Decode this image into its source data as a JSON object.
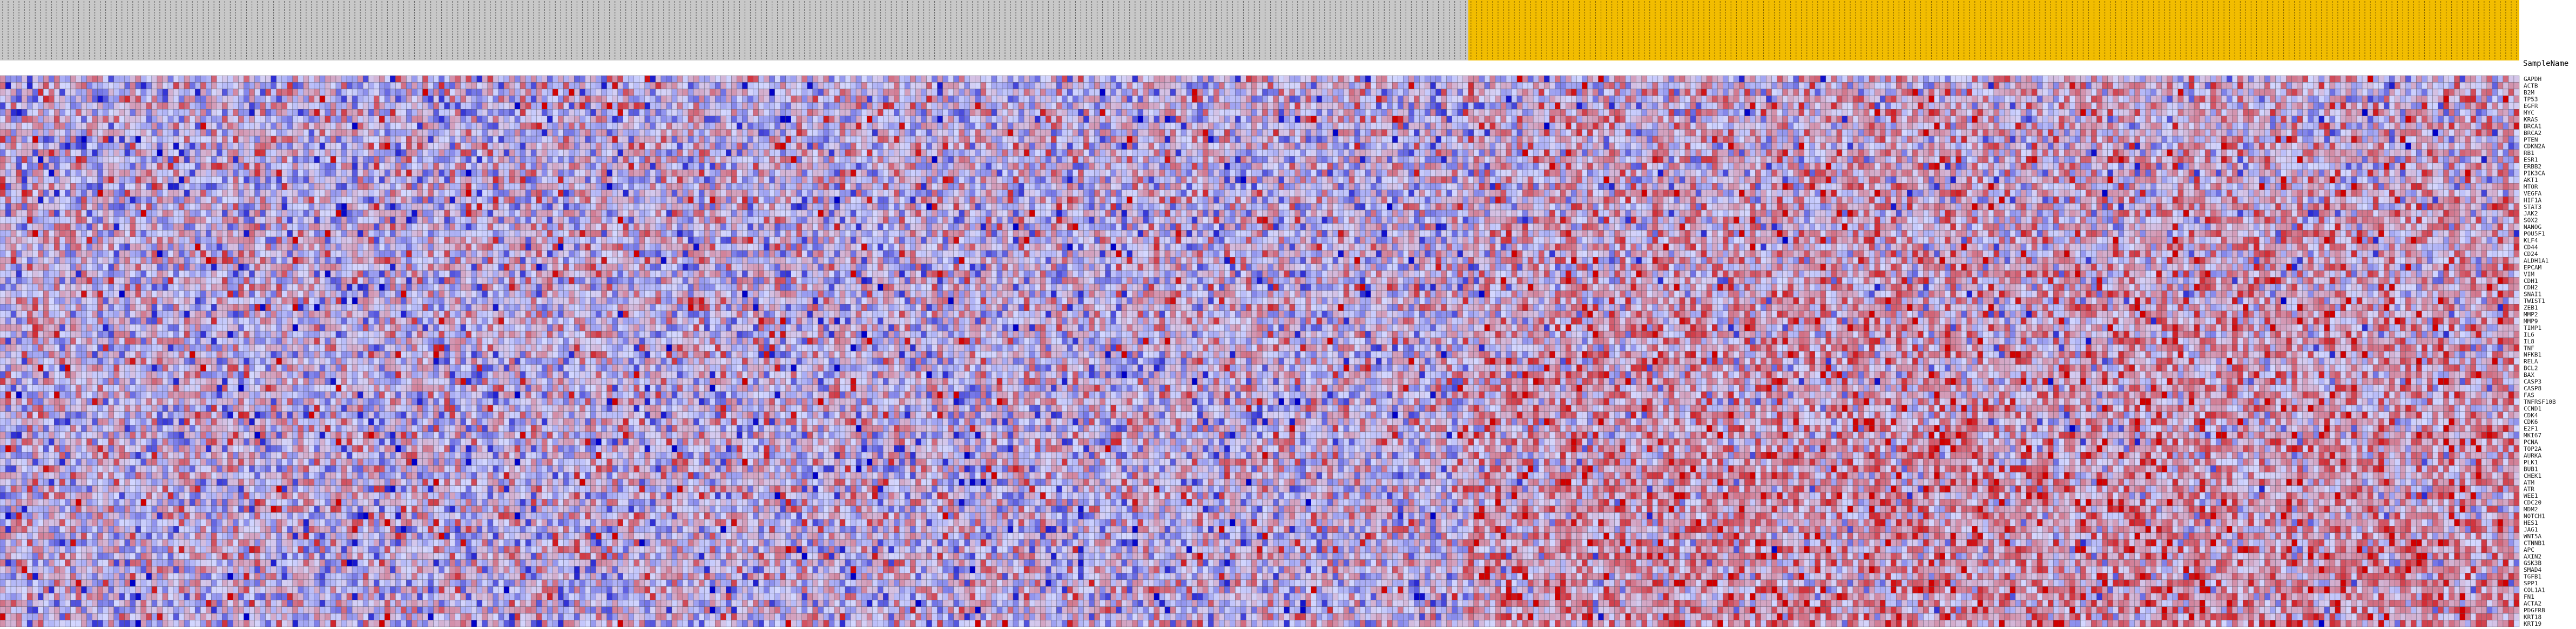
{
  "chart_data": {
    "type": "heatmap",
    "title": "",
    "header_label": "SampleName",
    "column_groups": [
      {
        "name": "",
        "count": 271,
        "color": "#c8c8c8"
      },
      {
        "name": "",
        "count": 194,
        "color": "#f2bd00"
      }
    ],
    "rows": [
      "GAPDH",
      "ACTB",
      "B2M",
      "TP53",
      "EGFR",
      "MYC",
      "KRAS",
      "BRCA1",
      "BRCA2",
      "PTEN",
      "CDKN2A",
      "RB1",
      "ESR1",
      "ERBB2",
      "PIK3CA",
      "AKT1",
      "MTOR",
      "VEGFA",
      "HIF1A",
      "STAT3",
      "JAK2",
      "SOX2",
      "NANOG",
      "POU5F1",
      "KLF4",
      "CD44",
      "CD24",
      "ALDH1A1",
      "EPCAM",
      "VIM",
      "CDH1",
      "CDH2",
      "SNAI1",
      "TWIST1",
      "ZEB1",
      "MMP2",
      "MMP9",
      "TIMP1",
      "IL6",
      "IL8",
      "TNF",
      "NFKB1",
      "RELA",
      "BCL2",
      "BAX",
      "CASP3",
      "CASP8",
      "FAS",
      "TNFRSF10B",
      "CCND1",
      "CDK4",
      "CDK6",
      "E2F1",
      "MKI67",
      "PCNA",
      "TOP2A",
      "AURKA",
      "PLK1",
      "BUB1",
      "CHEK1",
      "ATM",
      "ATR",
      "WEE1",
      "CDC20",
      "MDM2",
      "NOTCH1",
      "HES1",
      "JAG1",
      "WNT5A",
      "CTNNB1",
      "APC",
      "AXIN2",
      "GSK3B",
      "SMAD4",
      "TGFB1",
      "SPP1",
      "COL1A1",
      "FN1",
      "ACTA2",
      "PDGFRB",
      "KRT18",
      "KRT19"
    ],
    "color_scale": {
      "low": "#0000c8",
      "mid": "#d4d8ff",
      "high": "#d00000"
    },
    "value_range": [
      -3,
      3
    ]
  }
}
